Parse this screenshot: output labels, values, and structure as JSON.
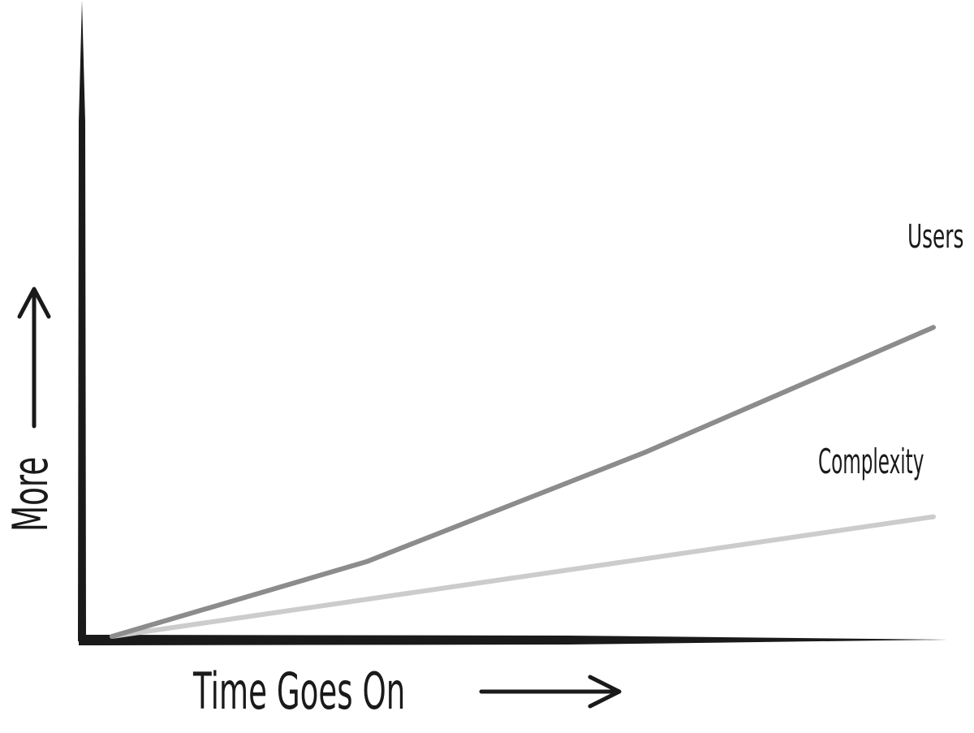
{
  "chart_data": {
    "type": "line",
    "title": "",
    "xlabel": "Time Goes On",
    "ylabel": "More",
    "grid": false,
    "xlim": [
      0,
      10
    ],
    "ylim": [
      0,
      10
    ],
    "series": [
      {
        "name": "Users",
        "color": "#8c8c8c",
        "x": [
          0,
          3.1,
          6.5,
          10
        ],
        "y": [
          0,
          1.5,
          3.7,
          6.2
        ]
      },
      {
        "name": "Complexity",
        "color": "#cccccc",
        "x": [
          0,
          10
        ],
        "y": [
          0,
          2.4
        ]
      }
    ]
  },
  "colors": {
    "axis": "#1a1a1a",
    "text": "#1a1a1a"
  }
}
